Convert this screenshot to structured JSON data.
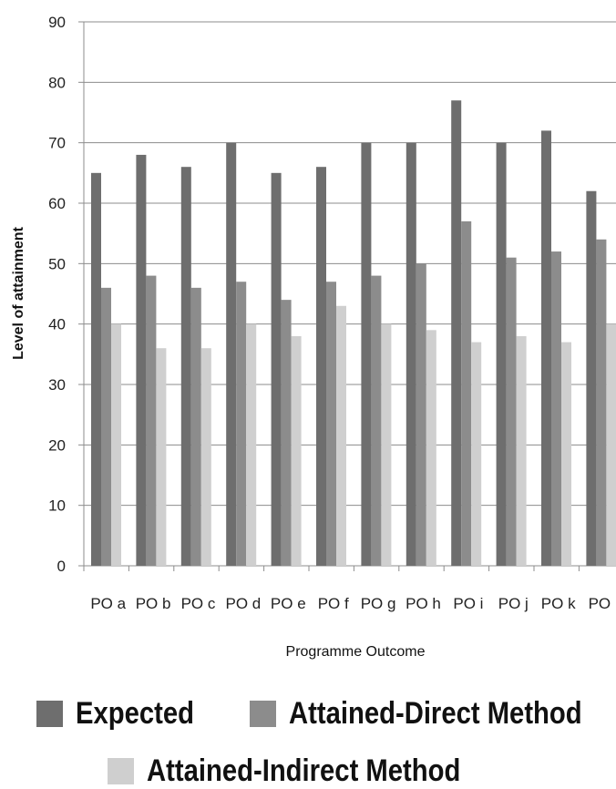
{
  "chart_data": {
    "type": "bar",
    "title": "",
    "xlabel": "Programme Outcome",
    "ylabel": "Level of attainment",
    "ylim": [
      0,
      90
    ],
    "yticks": [
      0,
      10,
      20,
      30,
      40,
      50,
      60,
      70,
      80,
      90
    ],
    "grid": "horizontal",
    "legend_position": "bottom",
    "categories": [
      "PO a",
      "PO b",
      "PO c",
      "PO d",
      "PO e",
      "PO f",
      "PO g",
      "PO h",
      "PO i",
      "PO j",
      "PO k",
      "PO l"
    ],
    "series": [
      {
        "name": "Expected",
        "color": "#6e6e6e",
        "values": [
          65,
          68,
          66,
          70,
          65,
          66,
          70,
          70,
          77,
          70,
          72,
          62
        ]
      },
      {
        "name": "Attained-Direct Method",
        "color": "#8c8c8c",
        "values": [
          46,
          48,
          46,
          47,
          44,
          47,
          48,
          50,
          57,
          51,
          52,
          54
        ]
      },
      {
        "name": "Attained-Indirect Method",
        "color": "#cfcfcf",
        "values": [
          40,
          36,
          36,
          40,
          38,
          43,
          40,
          39,
          37,
          38,
          37,
          40
        ]
      }
    ]
  },
  "legend": {
    "expected": "Expected",
    "direct": "Attained-Direct Method",
    "indirect": "Attained-Indirect Method"
  }
}
